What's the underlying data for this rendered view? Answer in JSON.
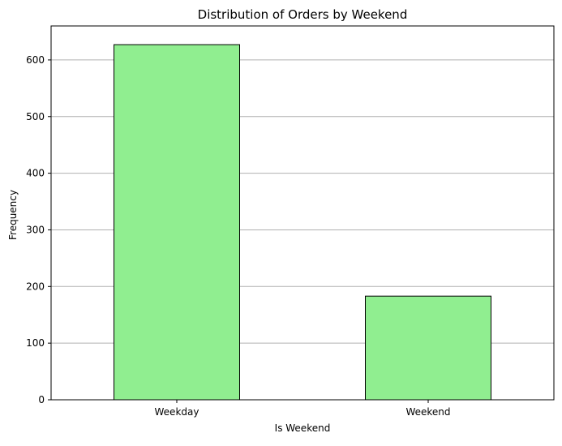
{
  "chart_data": {
    "type": "bar",
    "title": "Distribution of Orders by Weekend",
    "xlabel": "Is Weekend",
    "ylabel": "Frequency",
    "categories": [
      "Weekday",
      "Weekend"
    ],
    "values": [
      627,
      183
    ],
    "ylim": [
      0,
      660
    ],
    "yticks": [
      0,
      100,
      200,
      300,
      400,
      500,
      600
    ],
    "grid": "y-axis",
    "bar_color": "#90ee90",
    "bar_edge_color": "#000000",
    "grid_color": "#b0b0b0"
  }
}
